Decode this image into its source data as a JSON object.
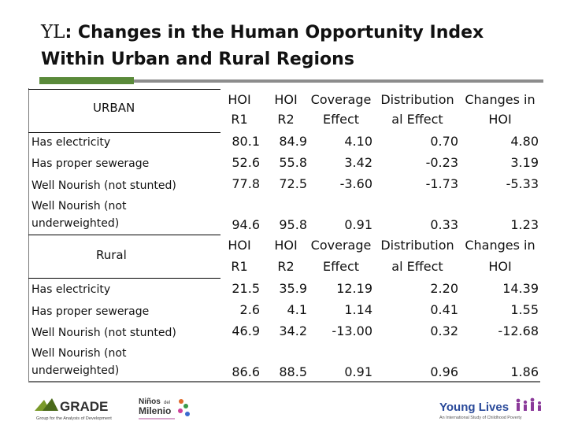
{
  "title": {
    "prefix": "YL",
    "text": ": Changes in the Human Opportunity Index Within Urban and Rural Regions"
  },
  "colors": {
    "accent_green": "#5a8a3a",
    "rule_gray": "#8c8c8c",
    "yl_blue": "#2a4a9a",
    "yl_purple": "#8b3a9a"
  },
  "headers": [
    "HOI\nR1",
    "HOI\nR2",
    "Coverage\nEffect",
    "Distribution\nal Effect",
    "Changes in\nHOI"
  ],
  "header_lines": {
    "line1": [
      "HOI",
      "HOI",
      "Coverage",
      "Distribution",
      "Changes in"
    ],
    "line2": [
      "R1",
      "R2",
      "Effect",
      "al Effect",
      "HOI"
    ]
  },
  "urban": {
    "label": "URBAN",
    "rows": [
      {
        "label": "Has electricity",
        "values": [
          "80.1",
          "84.9",
          "4.10",
          "0.70",
          "4.80"
        ]
      },
      {
        "label": "Has proper sewerage",
        "values": [
          "52.6",
          "55.8",
          "3.42",
          "-0.23",
          "3.19"
        ]
      },
      {
        "label": "Well Nourish (not stunted)",
        "values": [
          "77.8",
          "72.5",
          "-3.60",
          "-1.73",
          "-5.33"
        ]
      },
      {
        "label_line1": "Well Nourish  (not",
        "label_line2": "underweighted)",
        "values": [
          "94.6",
          "95.8",
          "0.91",
          "0.33",
          "1.23"
        ]
      }
    ]
  },
  "rural": {
    "label": "Rural",
    "rows": [
      {
        "label": "Has electricity",
        "values": [
          "21.5",
          "35.9",
          "12.19",
          "2.20",
          "14.39"
        ]
      },
      {
        "label": "Has proper sewerage",
        "values": [
          "2.6",
          "4.1",
          "1.14",
          "0.41",
          "1.55"
        ]
      },
      {
        "label": "Well Nourish (not stunted)",
        "values": [
          "46.9",
          "34.2",
          "-13.00",
          "0.32",
          "-12.68"
        ]
      },
      {
        "label_line1": "Well Nourish  (not",
        "label_line2": "underweighted)",
        "values": [
          "86.6",
          "88.5",
          "0.91",
          "0.96",
          "1.86"
        ]
      }
    ]
  },
  "logos": {
    "grade": {
      "name": "GRADE",
      "tagline": "Group for the Analysis of Development",
      "icon": "grade-logo-icon"
    },
    "ninos": {
      "line1": "Niños",
      "line1_small": "del",
      "line2": "Milenio",
      "icon": "ninos-del-milenio-logo-icon"
    },
    "young_lives": {
      "name": "Young Lives",
      "tagline": "An International Study of Childhood Poverty",
      "icon": "young-lives-logo-icon"
    }
  }
}
